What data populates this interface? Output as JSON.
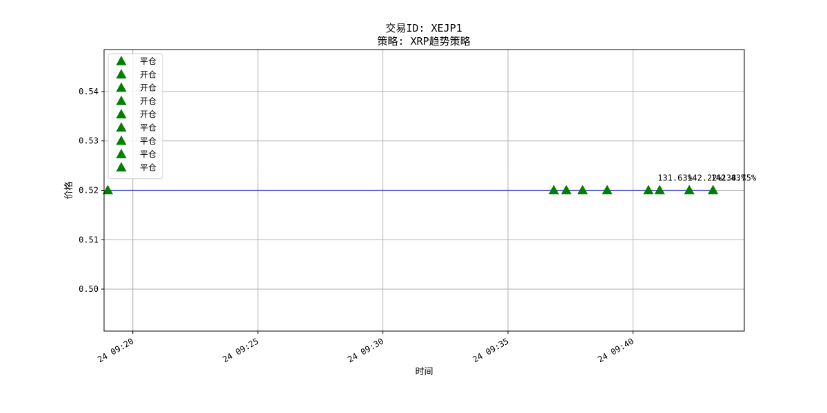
{
  "chart_data": {
    "type": "scatter",
    "title_line1": "交易ID: XEJP1",
    "title_line2": "策略: XRP趋势策略",
    "xlabel": "时间",
    "ylabel": "价格",
    "x_axis_type": "time",
    "xlim": [
      "24 09:18:51",
      "24 09:44:27"
    ],
    "ylim": [
      0.4915,
      0.5485
    ],
    "y_ticks": [
      0.5,
      0.51,
      0.52,
      0.53,
      0.54
    ],
    "y_tick_labels": [
      "0.50",
      "0.51",
      "0.52",
      "0.53",
      "0.54"
    ],
    "x_ticks": [
      "24 09:20",
      "24 09:25",
      "24 09:30",
      "24 09:35",
      "24 09:40"
    ],
    "x_tick_labels": [
      "24 09:20",
      "24 09:25",
      "24 09:30",
      "24 09:35",
      "24 09:40"
    ],
    "grid": true,
    "legend_position": "upper-left",
    "price_line": {
      "color": "#0000cc",
      "points": [
        {
          "x": "24 09:19:00",
          "y": 0.52
        },
        {
          "x": "24 09:43:12",
          "y": 0.52
        }
      ]
    },
    "markers": [
      {
        "x": "24 09:19:00",
        "y": 0.52,
        "label": "平仓",
        "shape": "triangle-up",
        "color": "#008000"
      },
      {
        "x": "24 09:36:50",
        "y": 0.52,
        "label": "开仓",
        "shape": "triangle-up",
        "color": "#008000"
      },
      {
        "x": "24 09:37:20",
        "y": 0.52,
        "label": "开仓",
        "shape": "triangle-up",
        "color": "#008000"
      },
      {
        "x": "24 09:37:59",
        "y": 0.52,
        "label": "开仓",
        "shape": "triangle-up",
        "color": "#008000"
      },
      {
        "x": "24 09:38:58",
        "y": 0.52,
        "label": "开仓",
        "shape": "triangle-up",
        "color": "#008000"
      },
      {
        "x": "24 09:40:37",
        "y": 0.52,
        "label": "平仓",
        "shape": "triangle-up",
        "color": "#008000",
        "annotation": ""
      },
      {
        "x": "24 09:41:04",
        "y": 0.52,
        "label": "平仓",
        "shape": "triangle-up",
        "color": "#008000",
        "annotation": "131.63%"
      },
      {
        "x": "24 09:42:15",
        "y": 0.52,
        "label": "平仓",
        "shape": "triangle-up",
        "color": "#008000",
        "annotation": "142.22%"
      },
      {
        "x": "24 09:43:12",
        "y": 0.52,
        "label": "平仓",
        "shape": "triangle-up",
        "color": "#008000",
        "annotation": "142.43%"
      }
    ],
    "extra_annotations": [
      {
        "x": "24 09:43:12",
        "y": 0.52,
        "text": "138.75%"
      }
    ]
  }
}
